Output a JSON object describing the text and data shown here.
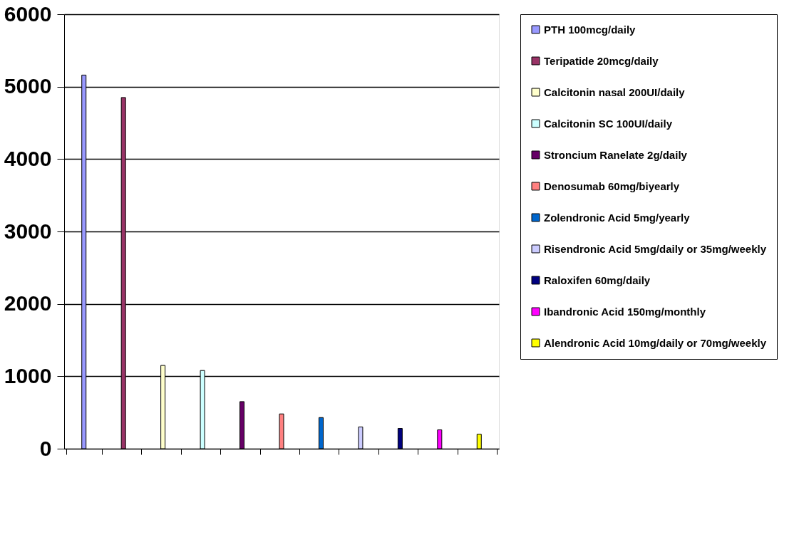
{
  "chart_data": {
    "type": "bar",
    "categories": [
      null,
      null,
      null,
      null,
      null,
      null,
      null,
      null,
      null,
      null,
      null
    ],
    "series": [
      {
        "name": "PTH 100mcg/daily",
        "color": "#9999ff",
        "values": [
          5160,
          null,
          null,
          null,
          null,
          null,
          null,
          null,
          null,
          null,
          null
        ]
      },
      {
        "name": "Teripatide 20mcg/daily",
        "color": "#993366",
        "values": [
          null,
          4850,
          null,
          null,
          null,
          null,
          null,
          null,
          null,
          null,
          null
        ]
      },
      {
        "name": "Calcitonin nasal 200UI/daily",
        "color": "#ffffcc",
        "values": [
          null,
          null,
          1150,
          null,
          null,
          null,
          null,
          null,
          null,
          null,
          null
        ]
      },
      {
        "name": "Calcitonin SC 100UI/daily",
        "color": "#ccffff",
        "values": [
          null,
          null,
          null,
          1080,
          null,
          null,
          null,
          null,
          null,
          null,
          null
        ]
      },
      {
        "name": "Stroncium Ranelate 2g/daily",
        "color": "#660066",
        "values": [
          null,
          null,
          null,
          null,
          650,
          null,
          null,
          null,
          null,
          null,
          null
        ]
      },
      {
        "name": "Denosumab 60mg/biyearly",
        "color": "#ff8080",
        "values": [
          null,
          null,
          null,
          null,
          null,
          480,
          null,
          null,
          null,
          null,
          null
        ]
      },
      {
        "name": "Zolendronic Acid 5mg/yearly",
        "color": "#0066cc",
        "values": [
          null,
          null,
          null,
          null,
          null,
          null,
          430,
          null,
          null,
          null,
          null
        ]
      },
      {
        "name": "Risendronic Acid 5mg/daily or 35mg/weekly",
        "color": "#ccccff",
        "values": [
          null,
          null,
          null,
          null,
          null,
          null,
          null,
          300,
          null,
          null,
          null
        ]
      },
      {
        "name": "Raloxifen 60mg/daily",
        "color": "#000080",
        "values": [
          null,
          null,
          null,
          null,
          null,
          null,
          null,
          null,
          280,
          null,
          null
        ]
      },
      {
        "name": "Ibandronic Acid 150mg/monthly",
        "color": "#ff00ff",
        "values": [
          null,
          null,
          null,
          null,
          null,
          null,
          null,
          null,
          null,
          260,
          null
        ]
      },
      {
        "name": "Alendronic Acid 10mg/daily or 70mg/weekly",
        "color": "#ffff00",
        "values": [
          null,
          null,
          null,
          null,
          null,
          null,
          null,
          null,
          null,
          null,
          200
        ]
      }
    ],
    "ylim": [
      0,
      6000
    ],
    "yticks": [
      0,
      1000,
      2000,
      3000,
      4000,
      5000,
      6000
    ],
    "grid": "y",
    "legend": "right",
    "tick_labels": "y"
  }
}
